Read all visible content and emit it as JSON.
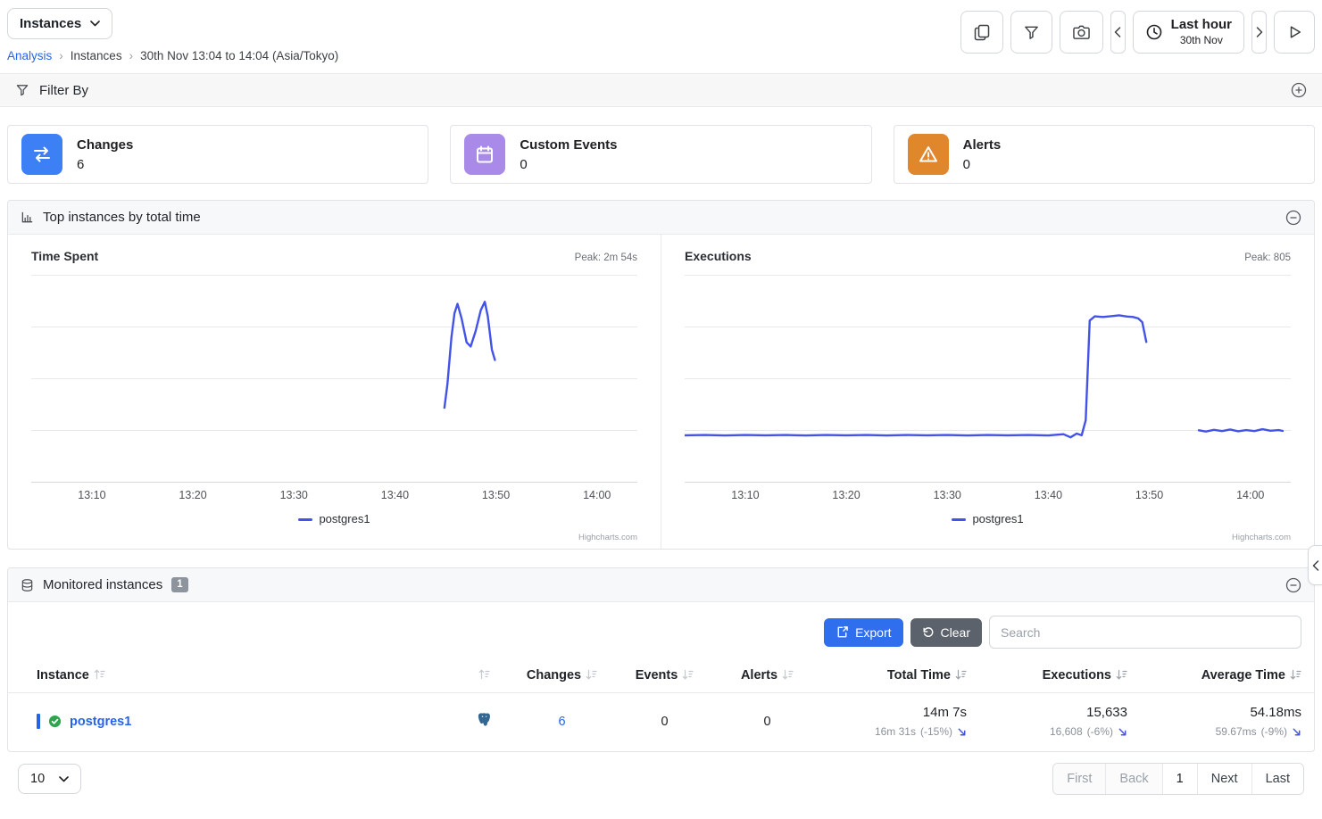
{
  "topbar": {
    "instances_button": "Instances",
    "breadcrumb": [
      "Analysis",
      "Instances",
      "30th Nov 13:04 to 14:04 (Asia/Tokyo)"
    ],
    "time_range": {
      "label": "Last hour",
      "sublabel": "30th Nov"
    }
  },
  "filter_bar": {
    "title": "Filter By"
  },
  "stat_cards": [
    {
      "label": "Changes",
      "value": "6",
      "icon": "changes-arrows-icon",
      "color": "#3d7ff5"
    },
    {
      "label": "Custom Events",
      "value": "0",
      "icon": "calendar-icon",
      "color": "#a98ae8"
    },
    {
      "label": "Alerts",
      "value": "0",
      "icon": "alert-triangle-icon",
      "color": "#e0872c"
    }
  ],
  "top_instances": {
    "title": "Top instances by total time"
  },
  "chart_data": [
    {
      "type": "line",
      "title": "Time Spent",
      "peak_label": "Peak: 2m 54s",
      "credit": "Highcharts.com",
      "x_range_minutes": [
        0,
        60
      ],
      "x_window": "13:04 to 14:04",
      "x_ticks": [
        {
          "m": 6,
          "label": "13:10"
        },
        {
          "m": 16,
          "label": "13:20"
        },
        {
          "m": 26,
          "label": "13:30"
        },
        {
          "m": 36,
          "label": "13:40"
        },
        {
          "m": 46,
          "label": "13:50"
        },
        {
          "m": 56,
          "label": "14:00"
        }
      ],
      "ylim": [
        0,
        200
      ],
      "unit": "seconds (estimated axis, peak = 174s)",
      "grid": true,
      "legend_position": "bottom",
      "series": [
        {
          "name": "postgres1",
          "color": "#4353e8",
          "points": [
            [
              40.9,
              72
            ],
            [
              41.2,
              95
            ],
            [
              41.6,
              140
            ],
            [
              41.9,
              163
            ],
            [
              42.2,
              172
            ],
            [
              42.6,
              158
            ],
            [
              43.1,
              135
            ],
            [
              43.5,
              131
            ],
            [
              44.0,
              146
            ],
            [
              44.5,
              166
            ],
            [
              44.9,
              174
            ],
            [
              45.2,
              160
            ],
            [
              45.6,
              128
            ],
            [
              45.9,
              118
            ]
          ]
        }
      ]
    },
    {
      "type": "line",
      "title": "Executions",
      "peak_label": "Peak: 805",
      "credit": "Highcharts.com",
      "x_range_minutes": [
        0,
        60
      ],
      "x_window": "13:04 to 14:04",
      "x_ticks": [
        {
          "m": 6,
          "label": "13:10"
        },
        {
          "m": 16,
          "label": "13:20"
        },
        {
          "m": 26,
          "label": "13:30"
        },
        {
          "m": 36,
          "label": "13:40"
        },
        {
          "m": 46,
          "label": "13:50"
        },
        {
          "m": 56,
          "label": "14:00"
        }
      ],
      "ylim": [
        0,
        1000
      ],
      "unit": "executions (estimated axis, peak = 805)",
      "grid": true,
      "legend_position": "bottom",
      "series": [
        {
          "name": "postgres1",
          "color": "#4353e8",
          "points": [
            [
              0,
              228
            ],
            [
              2,
              229
            ],
            [
              4,
              227
            ],
            [
              6,
              229
            ],
            [
              8,
              228
            ],
            [
              10,
              229
            ],
            [
              12,
              227
            ],
            [
              14,
              229
            ],
            [
              16,
              228
            ],
            [
              18,
              229
            ],
            [
              20,
              227
            ],
            [
              22,
              229
            ],
            [
              24,
              228
            ],
            [
              26,
              229
            ],
            [
              28,
              227
            ],
            [
              30,
              229
            ],
            [
              32,
              228
            ],
            [
              34,
              229
            ],
            [
              36,
              227
            ],
            [
              37.5,
              233
            ],
            [
              38.2,
              218
            ],
            [
              38.8,
              236
            ],
            [
              39.3,
              228
            ],
            [
              39.7,
              300
            ],
            [
              40.1,
              780
            ],
            [
              40.6,
              800
            ],
            [
              41.4,
              797
            ],
            [
              42.2,
              801
            ],
            [
              43.0,
              805
            ],
            [
              43.8,
              799
            ],
            [
              44.4,
              797
            ],
            [
              44.9,
              790
            ],
            [
              45.3,
              772
            ],
            [
              45.7,
              677
            ],
            null,
            [
              50.9,
              252
            ],
            [
              51.6,
              246
            ],
            [
              52.4,
              254
            ],
            [
              53.2,
              248
            ],
            [
              54.0,
              256
            ],
            [
              54.8,
              247
            ],
            [
              55.6,
              253
            ],
            [
              56.4,
              248
            ],
            [
              57.2,
              257
            ],
            [
              58.0,
              250
            ],
            [
              58.8,
              253
            ],
            [
              59.2,
              249
            ]
          ]
        }
      ]
    }
  ],
  "monitored": {
    "title": "Monitored instances",
    "count_badge": "1",
    "toolbar": {
      "export_label": "Export",
      "clear_label": "Clear",
      "search_placeholder": "Search"
    },
    "table": {
      "columns": [
        "Instance",
        "",
        "Changes",
        "Events",
        "Alerts",
        "Total Time",
        "Executions",
        "Average Time"
      ],
      "rows": [
        {
          "instance": "postgres1",
          "type": "postgresql",
          "changes": "6",
          "events": "0",
          "alerts": "0",
          "total_time": {
            "value": "14m 7s",
            "previous": "16m 31s",
            "delta": "(-15%)"
          },
          "executions": {
            "value": "15,633",
            "previous": "16,608",
            "delta": "(-6%)"
          },
          "average_time": {
            "value": "54.18ms",
            "previous": "59.67ms",
            "delta": "(-9%)"
          }
        }
      ]
    },
    "pagination": {
      "page_size": "10",
      "buttons": [
        "First",
        "Back",
        "1",
        "Next",
        "Last"
      ]
    }
  },
  "colors": {
    "accent_blue": "#2f6fed",
    "link_blue": "#2563eb",
    "chart_line": "#4353e8",
    "clear_button": "#5b626b",
    "ok_green": "#2da44e",
    "postgres_blue": "#336791"
  }
}
